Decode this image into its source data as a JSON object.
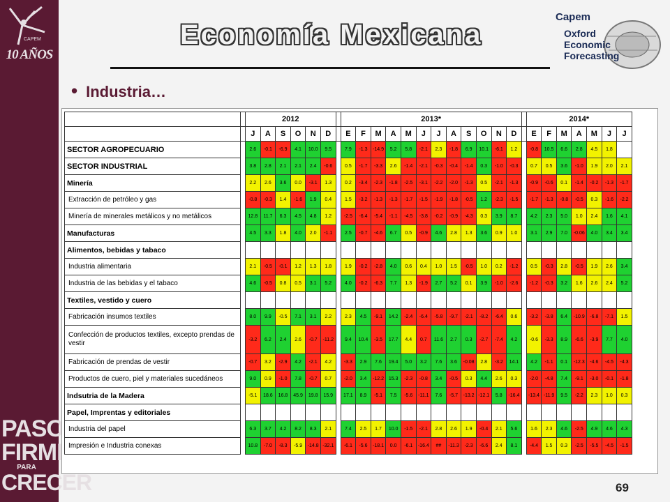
{
  "title": "Economía Mexicana",
  "bullet": "Industria…",
  "page_number": "69",
  "logo": {
    "anios": "10 AÑOS",
    "capem": "Capem",
    "oxford": [
      "Oxford",
      "Economic",
      "Forecasting"
    ]
  },
  "slogan": [
    "PASOS",
    "FIRMES",
    "PARA",
    "CRECER"
  ],
  "table": {
    "years": [
      {
        "label": "2012",
        "span": 6
      },
      {
        "label": "2013*",
        "span": 12
      },
      {
        "label": "2014*",
        "span": 7
      }
    ],
    "months": [
      "J",
      "A",
      "S",
      "O",
      "N",
      "D",
      "E",
      "F",
      "M",
      "A",
      "M",
      "J",
      "J",
      "A",
      "S",
      "O",
      "N",
      "D",
      "E",
      "F",
      "M",
      "A",
      "M",
      "J",
      "J"
    ],
    "rows": [
      {
        "label": "SECTOR AGROPECUARIO",
        "style": "b",
        "values": [
          "2.6",
          "-0.1",
          "-6.9",
          "4.1",
          "10.0",
          "9.5",
          "7.9",
          "-1.3",
          "-14.9",
          "5.2",
          "5.8",
          "-2.1",
          "2.3",
          "-1.8",
          "6.9",
          "10.1",
          "-6.1",
          "1.2",
          "-0.8",
          "10.5",
          "6.6",
          "2.8",
          "4.5",
          "1.8",
          ""
        ],
        "colors": [
          "g",
          "r",
          "r",
          "g",
          "g",
          "g",
          "g",
          "r",
          "r",
          "g",
          "g",
          "r",
          "y",
          "r",
          "g",
          "g",
          "r",
          "y",
          "r",
          "g",
          "g",
          "g",
          "y",
          "y",
          "n"
        ]
      },
      {
        "label": "SECTOR INDUSTRIAL",
        "style": "b",
        "values": [
          "3.8",
          "2.8",
          "2.1",
          "2.1",
          "2.4",
          "-0.6",
          "0.5",
          "-1.7",
          "-3.3",
          "2.6",
          "-1.4",
          "-2.1",
          "-0.3",
          "-0.4",
          "-1.4",
          "0.3",
          "-1.0",
          "-0.3",
          "0.7",
          "0.5",
          "3.6",
          "-1.0",
          "1.9",
          "2.0",
          "2.1"
        ],
        "colors": [
          "g",
          "g",
          "g",
          "g",
          "g",
          "r",
          "y",
          "r",
          "r",
          "y",
          "r",
          "r",
          "r",
          "r",
          "r",
          "g",
          "r",
          "r",
          "y",
          "y",
          "g",
          "r",
          "y",
          "y",
          "y"
        ]
      },
      {
        "label": "Minería",
        "style": "bb",
        "values": [
          "2.2",
          "2.6",
          "3.6",
          "0.0",
          "-3.1",
          "1.3",
          "0.2",
          "-3.4",
          "-2.3",
          "-1.8",
          "-2.5",
          "-3.1",
          "-2.2",
          "-2.0",
          "-1.3",
          "0.5",
          "-2.1",
          "-1.3",
          "-0.9",
          "-0.6",
          "0.1",
          "-1.4",
          "-0.2",
          "-1.3",
          "-1.7"
        ],
        "colors": [
          "y",
          "y",
          "g",
          "y",
          "r",
          "y",
          "y",
          "r",
          "r",
          "r",
          "r",
          "r",
          "r",
          "r",
          "r",
          "y",
          "r",
          "r",
          "r",
          "r",
          "y",
          "r",
          "r",
          "r",
          "r"
        ]
      },
      {
        "label": "Extracción de petróleo y gas",
        "style": "ind",
        "values": [
          "-0.8",
          "-0.3",
          "1.4",
          "-1.6",
          "1.9",
          "0.4",
          "1.5",
          "-3.2",
          "-1.3",
          "-1.3",
          "-1.7",
          "-1.5",
          "-1.9",
          "-1.8",
          "-0.5",
          "1.2",
          "-2.3",
          "-1.5",
          "-1.7",
          "-1.3",
          "-0.8",
          "-0.5",
          "0.3",
          "-1.6",
          "-2.2"
        ],
        "colors": [
          "r",
          "r",
          "y",
          "r",
          "g",
          "y",
          "y",
          "r",
          "r",
          "r",
          "r",
          "r",
          "r",
          "r",
          "r",
          "g",
          "r",
          "r",
          "r",
          "r",
          "r",
          "r",
          "y",
          "r",
          "r"
        ]
      },
      {
        "label": "Minería de minerales metálicos y no metálicos",
        "style": "ind",
        "values": [
          "12.8",
          "11.7",
          "6.3",
          "4.5",
          "4.8",
          "1.2",
          "-2.5",
          "-6.4",
          "-5.4",
          "-1.1",
          "-4.5",
          "-3.8",
          "-0.2",
          "-0.9",
          "-4.3",
          "0.3",
          "3.9",
          "8.7",
          "4.2",
          "2.3",
          "5.0",
          "1.0",
          "2.4",
          "1.6",
          "4.1"
        ],
        "colors": [
          "g",
          "g",
          "g",
          "g",
          "g",
          "y",
          "r",
          "r",
          "r",
          "r",
          "r",
          "r",
          "r",
          "r",
          "r",
          "y",
          "g",
          "g",
          "g",
          "g",
          "g",
          "y",
          "y",
          "g",
          "g"
        ]
      },
      {
        "label": "Manufacturas",
        "style": "bb",
        "values": [
          "4.5",
          "3.3",
          "1.8",
          "4.0",
          "2.0",
          "-1.1",
          "2.5",
          "-0.7",
          "-4.6",
          "6.7",
          "0.5",
          "-0.9",
          "4.6",
          "2.8",
          "1.3",
          "3.6",
          "0.9",
          "1.0",
          "3.1",
          "2.9",
          "7.0",
          "-0.06",
          "4.0",
          "3.4",
          "3.4"
        ],
        "colors": [
          "g",
          "g",
          "y",
          "g",
          "y",
          "r",
          "g",
          "r",
          "r",
          "g",
          "y",
          "r",
          "g",
          "y",
          "y",
          "g",
          "y",
          "y",
          "g",
          "g",
          "g",
          "r",
          "g",
          "g",
          "g"
        ]
      },
      {
        "label": "Alimentos, bebidas y tabaco",
        "style": "bb",
        "values": [
          "",
          "",
          "",
          "",
          "",
          "",
          "",
          "",
          "",
          "",
          "",
          "",
          "",
          "",
          "",
          "",
          "",
          "",
          "",
          "",
          "",
          "",
          "",
          "",
          ""
        ],
        "colors": [
          "n",
          "n",
          "n",
          "n",
          "n",
          "n",
          "n",
          "n",
          "n",
          "n",
          "n",
          "n",
          "n",
          "n",
          "n",
          "n",
          "n",
          "n",
          "n",
          "n",
          "n",
          "n",
          "n",
          "n",
          "n"
        ]
      },
      {
        "label": "Industria alimentaria",
        "style": "ind",
        "values": [
          "2.1",
          "-0.5",
          "-0.1",
          "1.2",
          "1.3",
          "1.8",
          "1.9",
          "-0.2",
          "-2.8",
          "4.0",
          "0.6",
          "0.4",
          "1.0",
          "1.5",
          "-0.5",
          "1.0",
          "0.2",
          "-1.2",
          "0.5",
          "-0.3",
          "2.8",
          "-0.5",
          "1.9",
          "2.6",
          "3.4"
        ],
        "colors": [
          "y",
          "r",
          "r",
          "y",
          "y",
          "y",
          "y",
          "r",
          "r",
          "g",
          "y",
          "y",
          "y",
          "y",
          "r",
          "y",
          "y",
          "r",
          "y",
          "r",
          "y",
          "r",
          "y",
          "y",
          "g"
        ]
      },
      {
        "label": "Industria de las bebidas y el tabaco",
        "style": "ind",
        "values": [
          "4.6",
          "-0.5",
          "0.8",
          "0.5",
          "3.1",
          "5.2",
          "4.0",
          "-0.2",
          "-6.3",
          "7.7",
          "1.3",
          "-1.9",
          "2.7",
          "5.2",
          "0.1",
          "3.9",
          "-1.0",
          "-2.6",
          "-1.2",
          "-0.3",
          "3.2",
          "1.6",
          "2.6",
          "2.4",
          "5.2"
        ],
        "colors": [
          "g",
          "r",
          "y",
          "y",
          "g",
          "g",
          "g",
          "r",
          "r",
          "g",
          "y",
          "r",
          "g",
          "g",
          "y",
          "g",
          "r",
          "r",
          "r",
          "r",
          "g",
          "y",
          "y",
          "y",
          "g"
        ]
      },
      {
        "label": "Textiles, vestido y cuero",
        "style": "bb",
        "values": [
          "",
          "",
          "",
          "",
          "",
          "",
          "",
          "",
          "",
          "",
          "",
          "",
          "",
          "",
          "",
          "",
          "",
          "",
          "",
          "",
          "",
          "",
          "",
          "",
          ""
        ],
        "colors": [
          "n",
          "n",
          "n",
          "n",
          "n",
          "n",
          "n",
          "n",
          "n",
          "n",
          "n",
          "n",
          "n",
          "n",
          "n",
          "n",
          "n",
          "n",
          "n",
          "n",
          "n",
          "n",
          "n",
          "n",
          "n"
        ]
      },
      {
        "label": "Fabricación insumos textiles",
        "style": "ind",
        "values": [
          "8.0",
          "9.9",
          "-0.5",
          "7.1",
          "3.1",
          "2.2",
          "2.3",
          "4.5",
          "-9.1",
          "14.2",
          "-2.4",
          "-6.4",
          "-5.8",
          "-9.7",
          "-2.1",
          "-8.2",
          "-6.4",
          "0.6",
          "-3.2",
          "-3.8",
          "6.4",
          "-10.9",
          "-6.8",
          "-7.1",
          "1.5"
        ],
        "colors": [
          "g",
          "g",
          "y",
          "g",
          "g",
          "y",
          "y",
          "g",
          "r",
          "g",
          "r",
          "r",
          "r",
          "r",
          "r",
          "r",
          "r",
          "y",
          "r",
          "r",
          "g",
          "r",
          "r",
          "r",
          "y"
        ]
      },
      {
        "label": "Confección de productos textiles, excepto prendas de vestir",
        "style": "ind2",
        "values": [
          "-3.2",
          "6.2",
          "2.4",
          "2.6",
          "-0.7",
          "-11.2",
          "9.4",
          "10.4",
          "-3.5",
          "17.7",
          "4.4",
          "0.7",
          "11.6",
          "2.7",
          "0.3",
          "-2.7",
          "-7.4",
          "4.2",
          "-0.6",
          "-3.3",
          "8.9",
          "-6.6",
          "-3.9",
          "7.7",
          "4.0"
        ],
        "colors": [
          "r",
          "g",
          "g",
          "y",
          "r",
          "r",
          "g",
          "g",
          "r",
          "g",
          "y",
          "r",
          "g",
          "g",
          "g",
          "r",
          "r",
          "g",
          "y",
          "r",
          "g",
          "r",
          "r",
          "g",
          "g"
        ]
      },
      {
        "label": "Fabricación de prendas de vestir",
        "style": "ind",
        "values": [
          "-0.7",
          "3.2",
          "-2.9",
          "4.2",
          "-2.1",
          "4.2",
          "-3.3",
          "2.9",
          "7.6",
          "19.4",
          "5.0",
          "3.2",
          "7.6",
          "3.6",
          "-0.08",
          "2.8",
          "-3.2",
          "14.1",
          "4.2",
          "-1.1",
          "0.1",
          "-12.3",
          "-4.6",
          "-4.5",
          "-4.3"
        ],
        "colors": [
          "r",
          "y",
          "r",
          "g",
          "r",
          "y",
          "r",
          "g",
          "g",
          "g",
          "g",
          "g",
          "g",
          "g",
          "r",
          "y",
          "r",
          "g",
          "g",
          "r",
          "g",
          "r",
          "r",
          "r",
          "r"
        ]
      },
      {
        "label": "Productos de cuero, piel y materiales sucedáneos",
        "style": "ind",
        "values": [
          "9.0",
          "0.9",
          "-1.0",
          "7.8",
          "-0.7",
          "0.7",
          "-2.0",
          "3.4",
          "-12.2",
          "15.3",
          "-2.3",
          "-0.8",
          "3.4",
          "-0.5",
          "0.3",
          "4.4",
          "2.6",
          "0.3",
          "-2.0",
          "-4.8",
          "7.4",
          "-9.1",
          "-3.0",
          "-0.1",
          "-1.8"
        ],
        "colors": [
          "g",
          "y",
          "r",
          "g",
          "r",
          "y",
          "r",
          "g",
          "r",
          "g",
          "r",
          "r",
          "g",
          "r",
          "y",
          "g",
          "y",
          "y",
          "r",
          "r",
          "g",
          "r",
          "r",
          "r",
          "r"
        ]
      },
      {
        "label": "Indsutria de la Madera",
        "style": "bb",
        "values": [
          "-5.1",
          "18.6",
          "16.8",
          "45.9",
          "19.8",
          "15.9",
          "17.1",
          "8.9",
          "-5.1",
          "7.5",
          "-5.6",
          "-11.1",
          "7.6",
          "-5.7",
          "-13.2",
          "-12.1",
          "5.8",
          "-16.4",
          "-13.4",
          "-11.9",
          "9.5",
          "-2.2",
          "2.3",
          "1.0",
          "0.3"
        ],
        "colors": [
          "y",
          "g",
          "g",
          "g",
          "g",
          "g",
          "g",
          "g",
          "r",
          "g",
          "r",
          "r",
          "g",
          "r",
          "r",
          "r",
          "g",
          "r",
          "r",
          "r",
          "g",
          "r",
          "y",
          "y",
          "y"
        ]
      },
      {
        "label": "Papel, Imprentas y editoriales",
        "style": "bb",
        "values": [
          "",
          "",
          "",
          "",
          "",
          "",
          "",
          "",
          "",
          "",
          "",
          "",
          "",
          "",
          "",
          "",
          "",
          "",
          "",
          "",
          "",
          "",
          "",
          "",
          ""
        ],
        "colors": [
          "n",
          "n",
          "n",
          "n",
          "n",
          "n",
          "n",
          "n",
          "n",
          "n",
          "n",
          "n",
          "n",
          "n",
          "n",
          "n",
          "n",
          "n",
          "n",
          "n",
          "n",
          "n",
          "n",
          "n",
          "n"
        ]
      },
      {
        "label": "Industria del papel",
        "style": "ind",
        "values": [
          "6.3",
          "3.7",
          "4.2",
          "8.2",
          "8.3",
          "2.1",
          "7.4",
          "2.5",
          "1.7",
          "10.0",
          "-1.5",
          "-2.1",
          "2.8",
          "2.6",
          "1.9",
          "-0.4",
          "2.1",
          "5.6",
          "1.6",
          "2.3",
          "4.6",
          "-2.5",
          "4.9",
          "4.6",
          "4.3"
        ],
        "colors": [
          "g",
          "g",
          "g",
          "g",
          "g",
          "y",
          "g",
          "y",
          "y",
          "g",
          "r",
          "r",
          "y",
          "y",
          "y",
          "r",
          "y",
          "g",
          "y",
          "y",
          "g",
          "r",
          "g",
          "g",
          "g"
        ]
      },
      {
        "label": "Impresión e Industria conexas",
        "style": "ind",
        "values": [
          "10.8",
          "-7.0",
          "-8.3",
          "-5.9",
          "-14.8",
          "-32.1",
          "-6.1",
          "-5.6",
          "-18.1",
          "0.0",
          "-6.1",
          "-16.4",
          "##",
          "-11.3",
          "-2.3",
          "-6.6",
          "2.4",
          "8.1",
          "-4.4",
          "1.5",
          "0.3",
          "-2.5",
          "-5.5",
          "-4.5",
          "-1.5"
        ],
        "colors": [
          "g",
          "r",
          "r",
          "y",
          "r",
          "r",
          "r",
          "r",
          "r",
          "r",
          "r",
          "r",
          "r",
          "r",
          "r",
          "r",
          "y",
          "g",
          "r",
          "y",
          "y",
          "r",
          "r",
          "r",
          "r"
        ]
      }
    ]
  }
}
